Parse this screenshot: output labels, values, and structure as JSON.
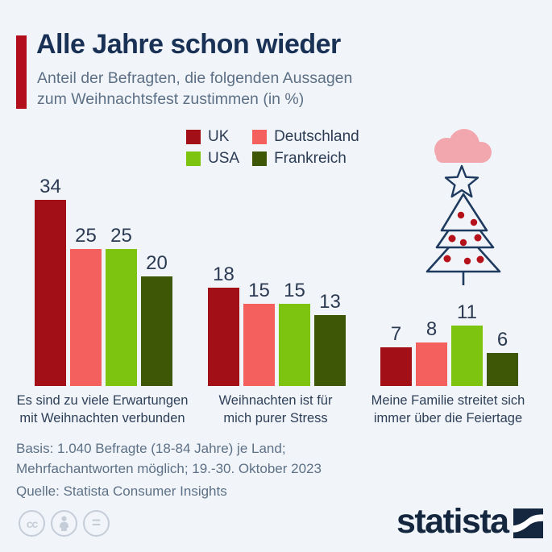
{
  "header": {
    "title": "Alle Jahre schon wieder",
    "subtitle": "Anteil der Befragten, die folgenden Aussagen\nzum Weihnachtsfest zustimmen (in %)"
  },
  "legend": {
    "items": [
      {
        "label": "UK",
        "color": "#a30f16"
      },
      {
        "label": "Deutschland",
        "color": "#f4605e"
      },
      {
        "label": "USA",
        "color": "#7cc410"
      },
      {
        "label": "Frankreich",
        "color": "#3d5706"
      }
    ]
  },
  "chart_data": {
    "type": "bar",
    "title": "Alle Jahre schon wieder",
    "subtitle": "Anteil der Befragten, die folgenden Aussagen zum Weihnachtsfest zustimmen (in %)",
    "unit": "%",
    "ylim": [
      0,
      34
    ],
    "grid": false,
    "legend_position": "top",
    "series_names": [
      "UK",
      "Deutschland",
      "USA",
      "Frankreich"
    ],
    "groups": [
      {
        "label": "Es sind zu viele Erwartungen\nmit Weihnachten verbunden",
        "values": [
          34,
          25,
          25,
          20
        ]
      },
      {
        "label": "Weihnachten ist für\nmich purer Stress",
        "values": [
          18,
          15,
          15,
          13
        ]
      },
      {
        "label": "Meine Familie streitet sich\nimmer über die Feiertage",
        "values": [
          7,
          8,
          11,
          6
        ]
      }
    ]
  },
  "footer": {
    "basis_line1": "Basis: 1.040 Befragte (18-84 Jahre) je Land;",
    "basis_line2": "Mehrfachantworten möglich; 19.-30. Oktober 2023",
    "source": "Quelle: Statista Consumer Insights"
  },
  "branding": {
    "logo_text": "statista",
    "cc_label": "cc",
    "nd_label": "="
  },
  "theme": {
    "background": "#f1f5f9",
    "accent_red": "#b30e1b",
    "title_navy": "#1a3156",
    "muted_text": "#5d7086",
    "illustration_outline": "#1e3a5f",
    "ornament_red": "#b5121b",
    "cloud_pink": "#f2a6ae",
    "license_gray": "#c4cdd8",
    "logo_navy": "#14273f"
  }
}
